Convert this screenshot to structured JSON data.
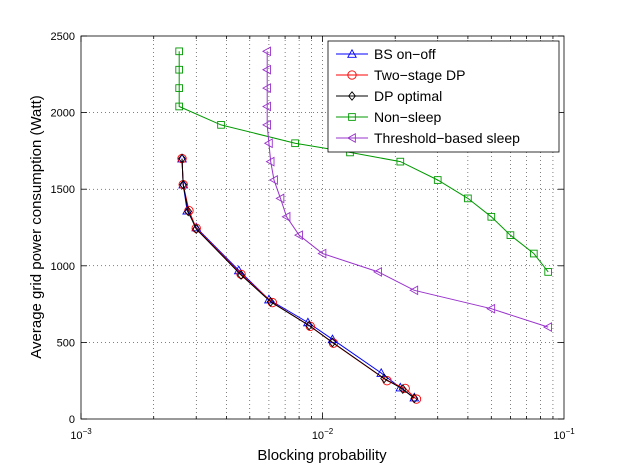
{
  "chart_data": {
    "type": "line",
    "title": "",
    "xlabel": "Blocking probability",
    "ylabel": "Average grid power consumption (Watt)",
    "xscale": "log",
    "xlim": [
      0.001,
      0.1
    ],
    "ylim": [
      0,
      2500
    ],
    "x_ticks": [
      {
        "value": 0.001,
        "base": "10",
        "exp": "−3"
      },
      {
        "value": 0.01,
        "base": "10",
        "exp": "−2"
      },
      {
        "value": 0.1,
        "base": "10",
        "exp": "−1"
      }
    ],
    "y_ticks": [
      0,
      500,
      1000,
      1500,
      2000,
      2500
    ],
    "grid": true,
    "legend_position": "top-right",
    "series": [
      {
        "name": "BS on−off",
        "color": "#0000ff",
        "marker": "triangle-up",
        "points": [
          [
            0.00262,
            1700
          ],
          [
            0.00265,
            1530
          ],
          [
            0.00275,
            1360
          ],
          [
            0.003,
            1250
          ],
          [
            0.0045,
            970
          ],
          [
            0.006,
            780
          ],
          [
            0.0087,
            630
          ],
          [
            0.011,
            520
          ],
          [
            0.0175,
            300
          ],
          [
            0.021,
            205
          ],
          [
            0.024,
            140
          ]
        ]
      },
      {
        "name": "Two−stage DP",
        "color": "#ff0000",
        "marker": "circle",
        "points": [
          [
            0.00262,
            1700
          ],
          [
            0.00265,
            1530
          ],
          [
            0.0028,
            1360
          ],
          [
            0.003,
            1245
          ],
          [
            0.0046,
            945
          ],
          [
            0.0062,
            760
          ],
          [
            0.0089,
            605
          ],
          [
            0.0111,
            495
          ],
          [
            0.0185,
            250
          ],
          [
            0.022,
            200
          ],
          [
            0.0245,
            130
          ]
        ]
      },
      {
        "name": "DP optimal",
        "color": "#000000",
        "marker": "diamond",
        "points": [
          [
            0.00262,
            1700
          ],
          [
            0.00265,
            1530
          ],
          [
            0.00278,
            1355
          ],
          [
            0.003,
            1240
          ],
          [
            0.0046,
            940
          ],
          [
            0.0061,
            765
          ],
          [
            0.0088,
            610
          ],
          [
            0.011,
            500
          ],
          [
            0.018,
            265
          ],
          [
            0.0215,
            195
          ],
          [
            0.024,
            135
          ]
        ]
      },
      {
        "name": "Non−sleep",
        "color": "#009900",
        "marker": "square",
        "points": [
          [
            0.00255,
            2400
          ],
          [
            0.00255,
            2280
          ],
          [
            0.00255,
            2160
          ],
          [
            0.00255,
            2040
          ],
          [
            0.0038,
            1920
          ],
          [
            0.0077,
            1800
          ],
          [
            0.013,
            1740
          ],
          [
            0.021,
            1680
          ],
          [
            0.03,
            1560
          ],
          [
            0.04,
            1440
          ],
          [
            0.05,
            1320
          ],
          [
            0.06,
            1200
          ],
          [
            0.075,
            1080
          ],
          [
            0.086,
            960
          ]
        ]
      },
      {
        "name": "Threshold−based sleep",
        "color": "#9933cc",
        "marker": "triangle-left",
        "points": [
          [
            0.0059,
            2400
          ],
          [
            0.0059,
            2280
          ],
          [
            0.0059,
            2160
          ],
          [
            0.0059,
            2040
          ],
          [
            0.0059,
            1920
          ],
          [
            0.006,
            1800
          ],
          [
            0.0061,
            1680
          ],
          [
            0.0063,
            1560
          ],
          [
            0.0067,
            1440
          ],
          [
            0.0071,
            1320
          ],
          [
            0.008,
            1200
          ],
          [
            0.01,
            1080
          ],
          [
            0.017,
            960
          ],
          [
            0.024,
            840
          ],
          [
            0.05,
            720
          ],
          [
            0.086,
            600
          ]
        ]
      }
    ]
  }
}
